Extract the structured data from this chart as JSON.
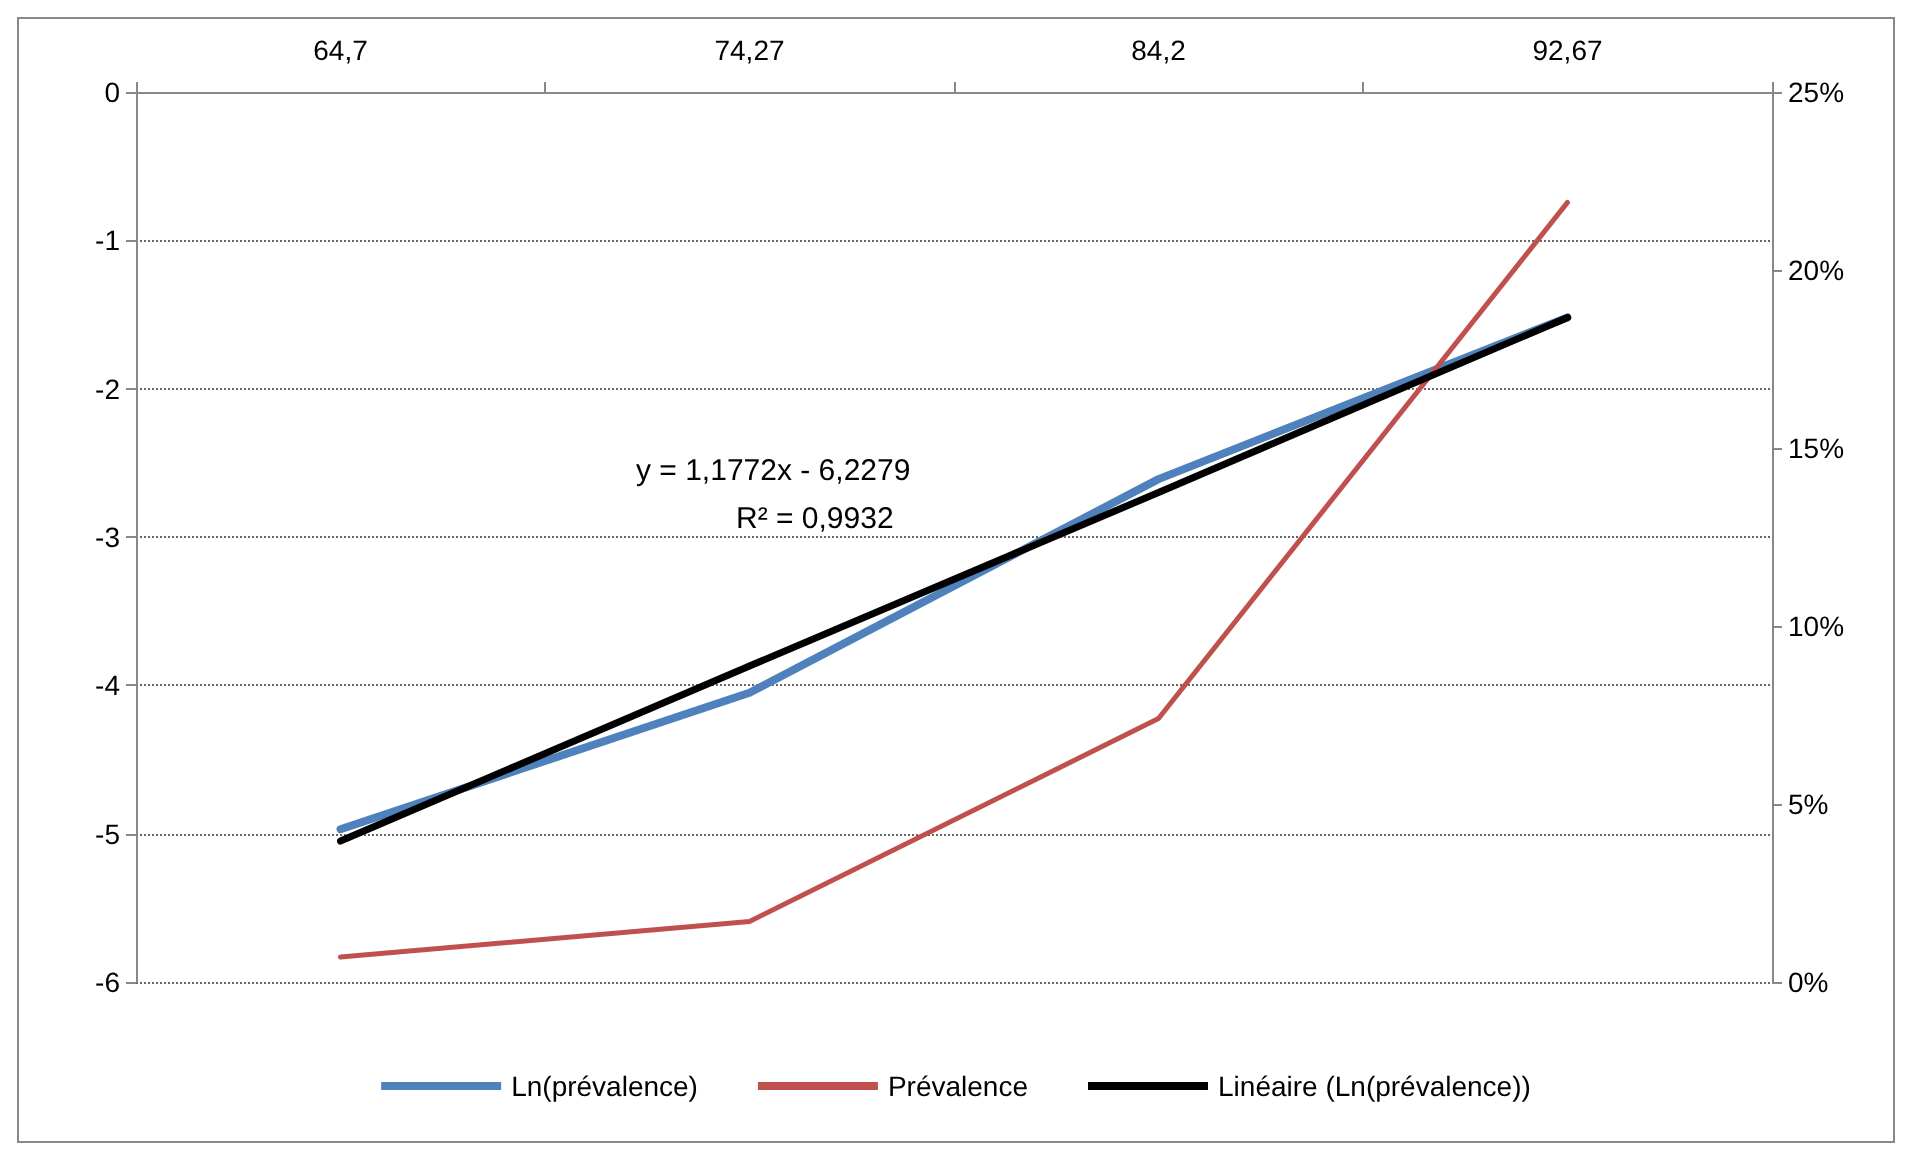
{
  "chart_data": {
    "type": "line",
    "categories": [
      "64,7",
      "74,27",
      "84,2",
      "92,67"
    ],
    "series": [
      {
        "name": "Ln(prévalence)",
        "color": "#4f81bd",
        "values": [
          -4.97,
          -4.05,
          -2.61,
          -1.52
        ]
      },
      {
        "name": "Prévalence",
        "color": "#c0504d",
        "values": [
          0.7,
          1.7,
          7.4,
          21.9
        ],
        "axis": "y2"
      },
      {
        "name": "Linéaire (Ln(prévalence))",
        "color": "#000000",
        "values": [
          -5.05,
          -3.87,
          -2.7,
          -1.52
        ]
      }
    ],
    "ylim": [
      -6,
      0
    ],
    "yticks": [
      -6,
      -5,
      -4,
      -3,
      -2,
      -1,
      0
    ],
    "y2lim": [
      0,
      25
    ],
    "y2ticks": [
      {
        "value": 0,
        "label": "0%"
      },
      {
        "value": 5,
        "label": "5%"
      },
      {
        "value": 10,
        "label": "10%"
      },
      {
        "value": 15,
        "label": "15%"
      },
      {
        "value": 20,
        "label": "20%"
      },
      {
        "value": 25,
        "label": "25%"
      }
    ],
    "annotations": [
      "y = 1,1772x - 6,2279",
      "R² = 0,9932"
    ],
    "grid": "y",
    "legend": "bottom",
    "marker": "none",
    "line_style": "solid"
  }
}
